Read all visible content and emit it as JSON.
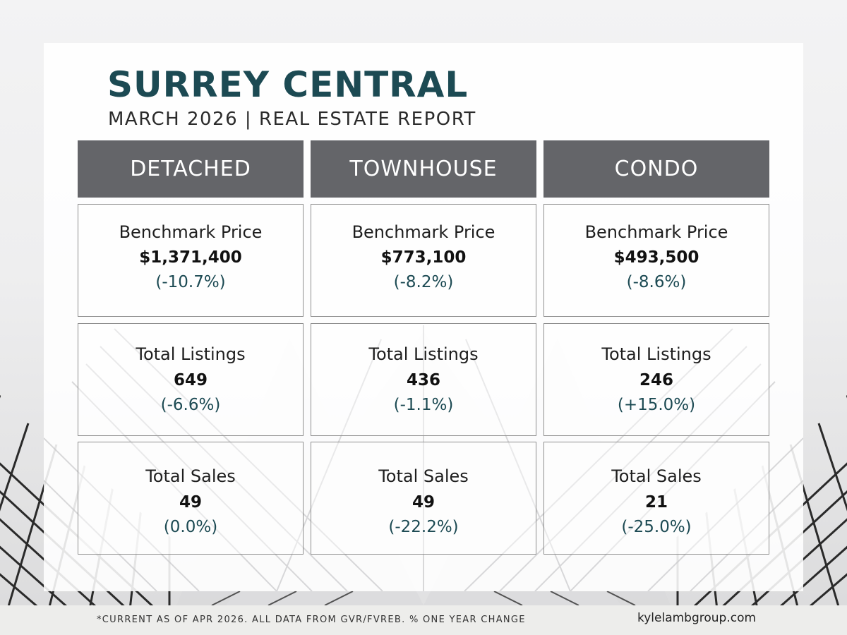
{
  "header": {
    "title": "SURREY CENTRAL",
    "subtitle": "MARCH 2026 | REAL ESTATE REPORT"
  },
  "columns": [
    {
      "name": "DETACHED",
      "benchmark": {
        "label": "Benchmark Price",
        "value": "$1,371,400",
        "change": "(-10.7%)"
      },
      "listings": {
        "label": "Total Listings",
        "value": "649",
        "change": "(-6.6%)"
      },
      "sales": {
        "label": "Total Sales",
        "value": "49",
        "change": "(0.0%)"
      }
    },
    {
      "name": "TOWNHOUSE",
      "benchmark": {
        "label": "Benchmark Price",
        "value": "$773,100",
        "change": "(-8.2%)"
      },
      "listings": {
        "label": "Total Listings",
        "value": "436",
        "change": "(-1.1%)"
      },
      "sales": {
        "label": "Total Sales",
        "value": "49",
        "change": "(-22.2%)"
      }
    },
    {
      "name": "CONDO",
      "benchmark": {
        "label": "Benchmark Price",
        "value": "$493,500",
        "change": "(-8.6%)"
      },
      "listings": {
        "label": "Total Listings",
        "value": "246",
        "change": "(+15.0%)"
      },
      "sales": {
        "label": "Total Sales",
        "value": "21",
        "change": "(-25.0%)"
      }
    }
  ],
  "footer": {
    "note": "*CURRENT AS  OF APR 2026. ALL DATA FROM GVR/FVREB.  % ONE YEAR CHANGE",
    "website": "kylelambgroup.com"
  },
  "colors": {
    "title": "#1c4a53",
    "header_bg": "#646569",
    "change_text": "#1c4a53"
  }
}
